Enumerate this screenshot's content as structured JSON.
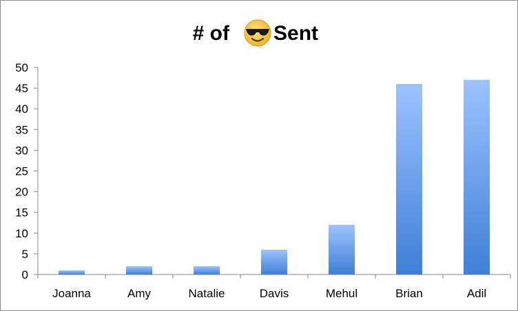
{
  "chart_data": {
    "type": "bar",
    "title_prefix": "# of",
    "title_emoji": "smiling-face-with-sunglasses-icon",
    "title_suffix": "Sent",
    "categories": [
      "Joanna",
      "Amy",
      "Natalie",
      "Davis",
      "Mehul",
      "Brian",
      "Adil"
    ],
    "values": [
      1,
      2,
      2,
      6,
      12,
      46,
      47
    ],
    "ylim": [
      0,
      50
    ],
    "yticks": [
      "0",
      "5",
      "10",
      "15",
      "20",
      "25",
      "30",
      "35",
      "40",
      "45",
      "50"
    ],
    "grid": false,
    "legend": "none",
    "colors": {
      "bar_top": "#9cc3ff",
      "bar_bottom": "#3f7fd6",
      "axis": "#8a8a8a"
    }
  }
}
